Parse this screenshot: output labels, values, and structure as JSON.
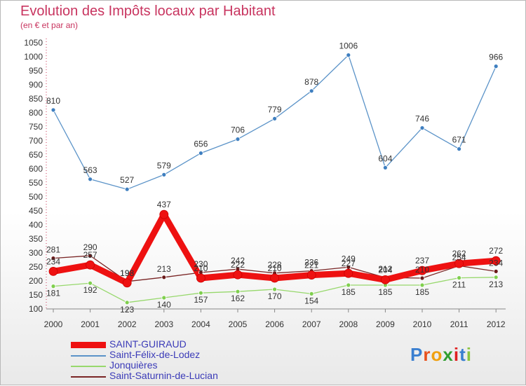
{
  "title": "Evolution des Impôts locaux par Habitant",
  "subtitle": "(en € et par an)",
  "logo": "Proxiti",
  "chart_data": {
    "type": "line",
    "title": "Evolution des Impôts locaux par Habitant",
    "subtitle": "(en € et par an)",
    "xlabel": "",
    "ylabel": "",
    "categories": [
      "2000",
      "2001",
      "2002",
      "2003",
      "2004",
      "2005",
      "2006",
      "2007",
      "2008",
      "2009",
      "2010",
      "2011",
      "2012"
    ],
    "y_ticks": [
      100,
      150,
      200,
      250,
      300,
      350,
      400,
      450,
      500,
      550,
      600,
      650,
      700,
      750,
      800,
      850,
      900,
      950,
      1000,
      1050
    ],
    "ylim": [
      100,
      1050
    ],
    "grid": false,
    "legend_position": "bottom-left",
    "series": [
      {
        "name": "Saint-Félix-de-Lodez",
        "color": "#5b93c8",
        "values": [
          810,
          563,
          527,
          579,
          656,
          706,
          779,
          878,
          1006,
          604,
          746,
          671,
          966
        ]
      },
      {
        "name": "Jonquières",
        "color": "#97d86c",
        "values": [
          181,
          192,
          123,
          140,
          157,
          162,
          170,
          154,
          185,
          185,
          185,
          211,
          213
        ]
      },
      {
        "name": "Saint-Saturnin-de-Lucian",
        "color": "#7a2525",
        "values": [
          281,
          290,
          198,
          213,
          230,
          242,
          228,
          236,
          249,
          212,
          210,
          254,
          234
        ]
      },
      {
        "name": "SAINT-GUIRAUD",
        "color": "#ee1111",
        "values": [
          234,
          257,
          193,
          437,
          210,
          222,
          210,
          221,
          227,
          204,
          237,
          262,
          272
        ]
      }
    ],
    "data_labels": {
      "Saint-Félix-de-Lodez": [
        "810",
        "563",
        "527",
        "579",
        "656",
        "706",
        "779",
        "878",
        "1006",
        "604",
        "746",
        "671",
        "966"
      ],
      "Jonquières": [
        "181",
        "192",
        "123",
        "140",
        "157",
        "162",
        "170",
        "154",
        "185",
        "185",
        "185",
        "211",
        "213"
      ],
      "Saint-Saturnin-de-Lucian": [
        "281",
        "290",
        "198",
        "213",
        "230",
        "242",
        "228",
        "236",
        "249",
        "212",
        "210",
        "254",
        "234"
      ],
      "SAINT-GUIRAUD": [
        "234",
        "257",
        "193",
        "437",
        "210",
        "222",
        "210",
        "221",
        "227",
        "204",
        "237",
        "262",
        "272"
      ]
    },
    "legend_order": [
      "SAINT-GUIRAUD",
      "Saint-Félix-de-Lodez",
      "Jonquières",
      "Saint-Saturnin-de-Lucian"
    ]
  }
}
